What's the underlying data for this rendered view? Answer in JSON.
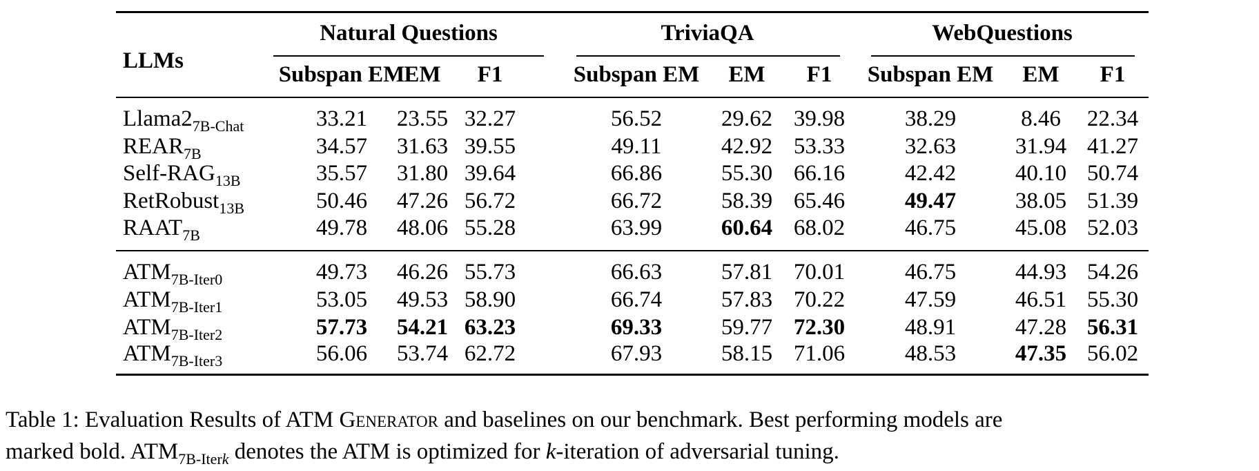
{
  "table": {
    "row_header": "LLMs",
    "groups": [
      "Natural Questions",
      "TriviaQA",
      "WebQuestions"
    ],
    "metrics": [
      "Subspan EM",
      "EM",
      "F1"
    ],
    "rows": [
      {
        "name": "Llama2",
        "sub": "7B-Chat",
        "values": [
          "33.21",
          "23.55",
          "32.27",
          "56.52",
          "29.62",
          "39.98",
          "38.29",
          "8.46",
          "22.34"
        ],
        "bold": []
      },
      {
        "name": "REAR",
        "sub": "7B",
        "values": [
          "34.57",
          "31.63",
          "39.55",
          "49.11",
          "42.92",
          "53.33",
          "32.63",
          "31.94",
          "41.27"
        ],
        "bold": []
      },
      {
        "name": "Self-RAG",
        "sub": "13B",
        "values": [
          "35.57",
          "31.80",
          "39.64",
          "66.86",
          "55.30",
          "66.16",
          "42.42",
          "40.10",
          "50.74"
        ],
        "bold": []
      },
      {
        "name": "RetRobust",
        "sub": "13B",
        "values": [
          "50.46",
          "47.26",
          "56.72",
          "66.72",
          "58.39",
          "65.46",
          "49.47",
          "38.05",
          "51.39"
        ],
        "bold": [
          6
        ]
      },
      {
        "name": "RAAT",
        "sub": "7B",
        "values": [
          "49.78",
          "48.06",
          "55.28",
          "63.99",
          "60.64",
          "68.02",
          "46.75",
          "45.08",
          "52.03"
        ],
        "bold": [
          4
        ]
      },
      {
        "name": "ATM",
        "sub": "7B-Iter0",
        "values": [
          "49.73",
          "46.26",
          "55.73",
          "66.63",
          "57.81",
          "70.01",
          "46.75",
          "44.93",
          "54.26"
        ],
        "bold": []
      },
      {
        "name": "ATM",
        "sub": "7B-Iter1",
        "values": [
          "53.05",
          "49.53",
          "58.90",
          "66.74",
          "57.83",
          "70.22",
          "47.59",
          "46.51",
          "55.30"
        ],
        "bold": []
      },
      {
        "name": "ATM",
        "sub": "7B-Iter2",
        "values": [
          "57.73",
          "54.21",
          "63.23",
          "69.33",
          "59.77",
          "72.30",
          "48.91",
          "47.28",
          "56.31"
        ],
        "bold": [
          0,
          1,
          2,
          3,
          5,
          8
        ]
      },
      {
        "name": "ATM",
        "sub": "7B-Iter3",
        "values": [
          "56.06",
          "53.74",
          "62.72",
          "67.93",
          "58.15",
          "71.06",
          "48.53",
          "47.35",
          "56.02"
        ],
        "bold": [
          7
        ]
      }
    ]
  },
  "caption": {
    "line1_a": "Table 1: Evaluation Results of ATM ",
    "line1_sc": "Generator",
    "line1_b": " and baselines on our benchmark. Best performing models are",
    "line2_a": "marked bold. ATM",
    "line2_sub": "7B-Iter",
    "line2_sub_k": "k",
    "line2_b": " denotes the ATM is optimized for ",
    "line2_k": "k",
    "line2_c": "-iteration of adversarial tuning."
  }
}
